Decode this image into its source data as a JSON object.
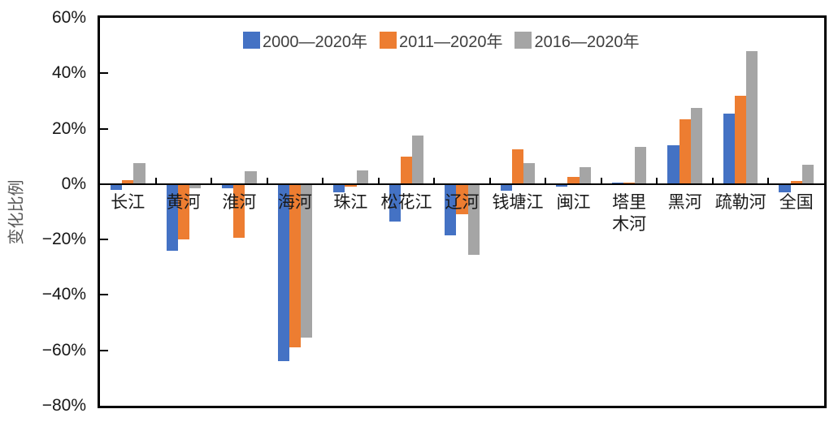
{
  "chart_data": {
    "type": "bar",
    "title": "",
    "ylabel": "变化比例",
    "categories": [
      "长江",
      "黄河",
      "淮河",
      "海河",
      "珠江",
      "松花江",
      "辽河",
      "钱塘江",
      "闽江",
      "塔里\n木河",
      "黑河",
      "疏勒河",
      "全国"
    ],
    "series": [
      {
        "name": "2000—2020年",
        "color": "#4472C4",
        "values": [
          -2,
          -24,
          -1.5,
          -64,
          -3,
          -13.5,
          -18.5,
          -2.5,
          -1,
          0.5,
          14,
          25.5,
          -3
        ]
      },
      {
        "name": "2011—2020年",
        "color": "#ED7D31",
        "values": [
          1.5,
          -20,
          -19.5,
          -59,
          -1,
          10,
          -11,
          12.5,
          2.5,
          0.5,
          23.5,
          32,
          1
        ]
      },
      {
        "name": "2016—2020年",
        "color": "#A5A5A5",
        "values": [
          7.5,
          -1.5,
          4.5,
          -55.5,
          5,
          17.5,
          -25.5,
          7.5,
          6,
          13.5,
          27.5,
          48,
          7
        ]
      }
    ],
    "ylim": [
      -80,
      60
    ],
    "yticks": [
      60,
      40,
      20,
      0,
      -20,
      -40,
      -60,
      -80
    ],
    "ytick_labels": [
      "60%",
      "40%",
      "20%",
      "0%",
      "−20%",
      "−40%",
      "−60%",
      "−80%"
    ],
    "grid": false,
    "legend_position": "top-center",
    "bar_unit": "percent"
  },
  "colors": {
    "axis": "#000000",
    "blue_series": "#4472C4",
    "orange_series": "#ED7D31",
    "gray_series": "#A5A5A5",
    "background": "#ffffff"
  }
}
